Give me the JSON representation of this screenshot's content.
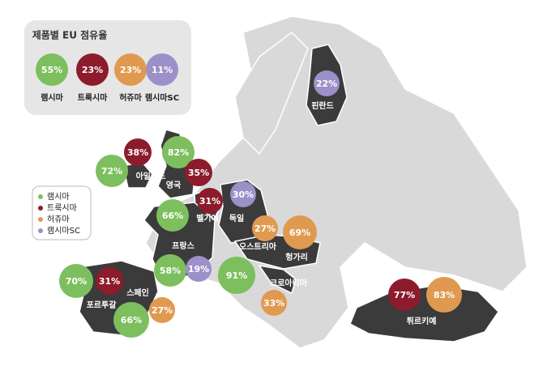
{
  "legend": {
    "title": "제품별 EU 점유율",
    "items": [
      {
        "name": "램시마",
        "share": "55%"
      },
      {
        "name": "트룩시마",
        "share": "23%"
      },
      {
        "name": "허쥬마",
        "share": "23%"
      },
      {
        "name": "램시마SC",
        "share": "11%"
      }
    ]
  },
  "key": [
    "램시마",
    "트룩시마",
    "허쥬마",
    "램시마SC"
  ],
  "countries": [
    "핀란드",
    "아일랜드",
    "영국",
    "벨기에",
    "독일",
    "프랑스",
    "오스트리아",
    "헝가리",
    "크로아티아",
    "스페인",
    "포르투갈",
    "튀르키예"
  ],
  "bubbles": [
    "22%",
    "38%",
    "72%",
    "82%",
    "35%",
    "31%",
    "30%",
    "66%",
    "27%",
    "69%",
    "58%",
    "19%",
    "91%",
    "33%",
    "70%",
    "31%",
    "27%",
    "66%",
    "77%",
    "83%"
  ]
}
